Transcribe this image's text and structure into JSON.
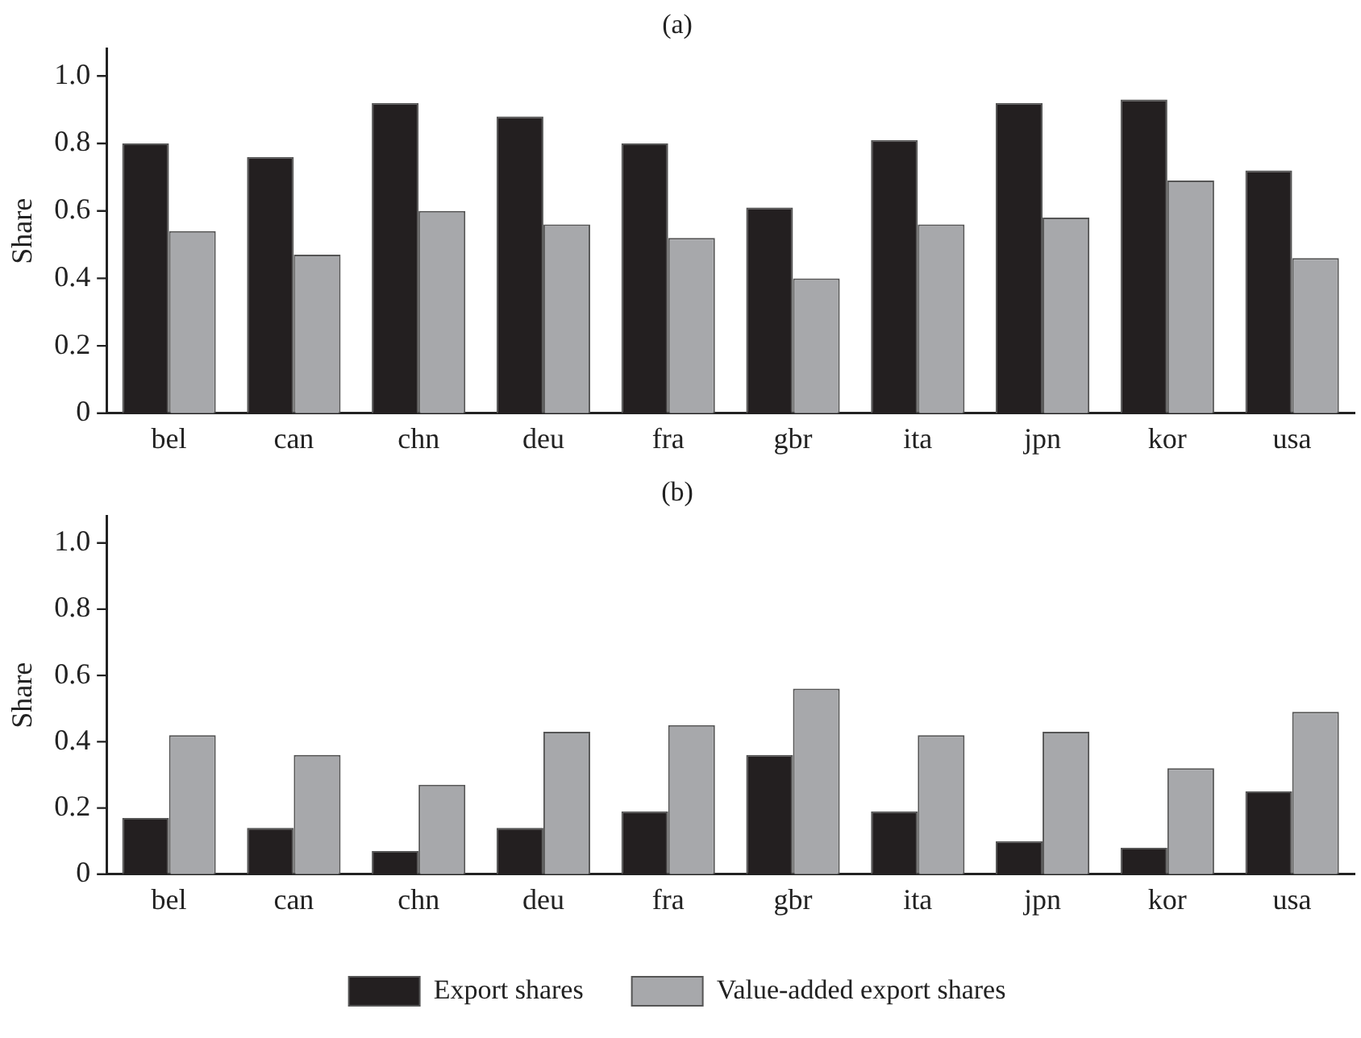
{
  "chart_data": [
    {
      "type": "bar",
      "title": "(a)",
      "ylabel": "Share",
      "categories": [
        "bel",
        "can",
        "chn",
        "deu",
        "fra",
        "gbr",
        "ita",
        "jpn",
        "kor",
        "usa"
      ],
      "series": [
        {
          "color": "#231f20",
          "values": [
            0.8,
            0.76,
            0.92,
            0.88,
            0.8,
            0.61,
            0.81,
            0.92,
            0.93,
            0.72
          ]
        },
        {
          "color": "#a7a8ab",
          "values": [
            0.54,
            0.47,
            0.6,
            0.56,
            0.52,
            0.4,
            0.56,
            0.58,
            0.69,
            0.46
          ]
        }
      ],
      "ylim": [
        0,
        1.08
      ],
      "yticks": [
        0,
        0.2,
        0.4,
        0.6,
        0.8,
        {
          "value": 1,
          "label": "1.0"
        }
      ],
      "grid": false,
      "legend": false
    },
    {
      "type": "bar",
      "title": "(b)",
      "ylabel": "Share",
      "categories": [
        "bel",
        "can",
        "chn",
        "deu",
        "fra",
        "gbr",
        "ita",
        "jpn",
        "kor",
        "usa"
      ],
      "series": [
        {
          "name": "Export shares",
          "color": "#231f20",
          "values": [
            0.17,
            0.14,
            0.07,
            0.14,
            0.19,
            0.36,
            0.19,
            0.1,
            0.08,
            0.25
          ]
        },
        {
          "name": "Value-added export shares",
          "color": "#a7a8ab",
          "values": [
            0.42,
            0.36,
            0.27,
            0.43,
            0.45,
            0.56,
            0.42,
            0.43,
            0.32,
            0.49
          ]
        }
      ],
      "ylim": [
        0,
        1.08
      ],
      "yticks": [
        0,
        0.2,
        0.4,
        0.6,
        0.8,
        {
          "value": 1,
          "label": "1.0"
        }
      ],
      "grid": false,
      "legend": "bottom"
    }
  ]
}
